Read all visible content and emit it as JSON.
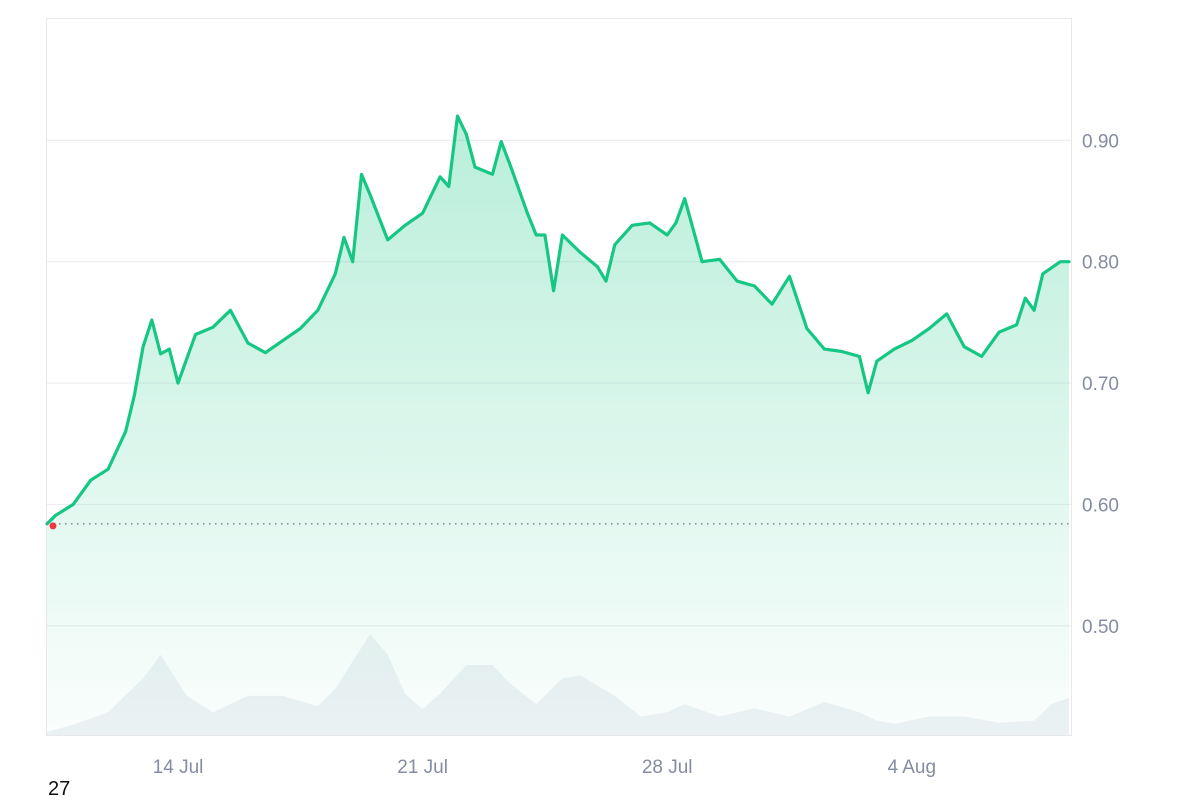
{
  "chart_data": {
    "type": "area",
    "y_ticks": [
      "0.90",
      "0.80",
      "0.70",
      "0.60",
      "0.50"
    ],
    "ylim": [
      0.41,
      1.0
    ],
    "x_ticks": [
      {
        "label": "14 Jul",
        "date": "2024-07-14"
      },
      {
        "label": "21 Jul",
        "date": "2024-07-21"
      },
      {
        "label": "28 Jul",
        "date": "2024-07-28"
      },
      {
        "label": "4 Aug",
        "date": "2024-08-04"
      }
    ],
    "xlim": [
      "2024-07-10T06:00",
      "2024-08-08T12:00"
    ],
    "baseline": 0.584,
    "series": [
      {
        "color": "#16c784",
        "points": [
          [
            "2024-07-10T06:00",
            0.584
          ],
          [
            "2024-07-10T12:00",
            0.591
          ],
          [
            "2024-07-11T00:00",
            0.6
          ],
          [
            "2024-07-11T12:00",
            0.62
          ],
          [
            "2024-07-12T00:00",
            0.629
          ],
          [
            "2024-07-12T12:00",
            0.66
          ],
          [
            "2024-07-12T18:00",
            0.69
          ],
          [
            "2024-07-13T00:00",
            0.73
          ],
          [
            "2024-07-13T06:00",
            0.752
          ],
          [
            "2024-07-13T12:00",
            0.724
          ],
          [
            "2024-07-13T18:00",
            0.728
          ],
          [
            "2024-07-14T00:00",
            0.7
          ],
          [
            "2024-07-14T12:00",
            0.74
          ],
          [
            "2024-07-15T00:00",
            0.746
          ],
          [
            "2024-07-15T12:00",
            0.76
          ],
          [
            "2024-07-16T00:00",
            0.733
          ],
          [
            "2024-07-16T12:00",
            0.725
          ],
          [
            "2024-07-17T00:00",
            0.735
          ],
          [
            "2024-07-17T12:00",
            0.745
          ],
          [
            "2024-07-18T00:00",
            0.76
          ],
          [
            "2024-07-18T12:00",
            0.79
          ],
          [
            "2024-07-18T18:00",
            0.82
          ],
          [
            "2024-07-19T00:00",
            0.8
          ],
          [
            "2024-07-19T06:00",
            0.872
          ],
          [
            "2024-07-19T12:00",
            0.855
          ],
          [
            "2024-07-20T00:00",
            0.818
          ],
          [
            "2024-07-20T12:00",
            0.83
          ],
          [
            "2024-07-21T00:00",
            0.84
          ],
          [
            "2024-07-21T12:00",
            0.87
          ],
          [
            "2024-07-21T18:00",
            0.862
          ],
          [
            "2024-07-22T00:00",
            0.92
          ],
          [
            "2024-07-22T06:00",
            0.905
          ],
          [
            "2024-07-22T12:00",
            0.878
          ],
          [
            "2024-07-23T00:00",
            0.872
          ],
          [
            "2024-07-23T06:00",
            0.899
          ],
          [
            "2024-07-23T12:00",
            0.88
          ],
          [
            "2024-07-24T00:00",
            0.84
          ],
          [
            "2024-07-24T06:00",
            0.822
          ],
          [
            "2024-07-24T12:00",
            0.822
          ],
          [
            "2024-07-24T18:00",
            0.776
          ],
          [
            "2024-07-25T00:00",
            0.822
          ],
          [
            "2024-07-25T12:00",
            0.808
          ],
          [
            "2024-07-26T00:00",
            0.796
          ],
          [
            "2024-07-26T06:00",
            0.784
          ],
          [
            "2024-07-26T12:00",
            0.814
          ],
          [
            "2024-07-27T00:00",
            0.83
          ],
          [
            "2024-07-27T12:00",
            0.832
          ],
          [
            "2024-07-28T00:00",
            0.822
          ],
          [
            "2024-07-28T06:00",
            0.832
          ],
          [
            "2024-07-28T12:00",
            0.852
          ],
          [
            "2024-07-29T00:00",
            0.8
          ],
          [
            "2024-07-29T12:00",
            0.802
          ],
          [
            "2024-07-30T00:00",
            0.784
          ],
          [
            "2024-07-30T12:00",
            0.78
          ],
          [
            "2024-07-31T00:00",
            0.765
          ],
          [
            "2024-07-31T12:00",
            0.788
          ],
          [
            "2024-08-01T00:00",
            0.745
          ],
          [
            "2024-08-01T12:00",
            0.728
          ],
          [
            "2024-08-02T00:00",
            0.726
          ],
          [
            "2024-08-02T12:00",
            0.722
          ],
          [
            "2024-08-02T18:00",
            0.692
          ],
          [
            "2024-08-03T00:00",
            0.718
          ],
          [
            "2024-08-03T12:00",
            0.728
          ],
          [
            "2024-08-04T00:00",
            0.735
          ],
          [
            "2024-08-04T12:00",
            0.745
          ],
          [
            "2024-08-05T00:00",
            0.757
          ],
          [
            "2024-08-05T12:00",
            0.73
          ],
          [
            "2024-08-06T00:00",
            0.722
          ],
          [
            "2024-08-06T12:00",
            0.742
          ],
          [
            "2024-08-07T00:00",
            0.748
          ],
          [
            "2024-08-07T06:00",
            0.77
          ],
          [
            "2024-08-07T12:00",
            0.76
          ],
          [
            "2024-08-07T18:00",
            0.79
          ],
          [
            "2024-08-08T06:00",
            0.8
          ],
          [
            "2024-08-08T12:00",
            0.8
          ]
        ]
      }
    ],
    "volume": {
      "color": "#eff2f5",
      "points": [
        [
          "2024-07-10T06:00",
          0.03
        ],
        [
          "2024-07-11T00:00",
          0.1
        ],
        [
          "2024-07-12T00:00",
          0.22
        ],
        [
          "2024-07-13T00:00",
          0.55
        ],
        [
          "2024-07-13T12:00",
          0.78
        ],
        [
          "2024-07-14T06:00",
          0.38
        ],
        [
          "2024-07-15T00:00",
          0.22
        ],
        [
          "2024-07-16T00:00",
          0.38
        ],
        [
          "2024-07-17T00:00",
          0.38
        ],
        [
          "2024-07-18T00:00",
          0.28
        ],
        [
          "2024-07-18T12:00",
          0.45
        ],
        [
          "2024-07-19T06:00",
          0.85
        ],
        [
          "2024-07-19T12:00",
          0.98
        ],
        [
          "2024-07-20T00:00",
          0.78
        ],
        [
          "2024-07-20T12:00",
          0.4
        ],
        [
          "2024-07-21T00:00",
          0.25
        ],
        [
          "2024-07-21T12:00",
          0.4
        ],
        [
          "2024-07-22T06:00",
          0.68
        ],
        [
          "2024-07-23T00:00",
          0.68
        ],
        [
          "2024-07-23T12:00",
          0.5
        ],
        [
          "2024-07-24T06:00",
          0.3
        ],
        [
          "2024-07-25T00:00",
          0.55
        ],
        [
          "2024-07-25T12:00",
          0.58
        ],
        [
          "2024-07-26T12:00",
          0.38
        ],
        [
          "2024-07-27T06:00",
          0.18
        ],
        [
          "2024-07-28T00:00",
          0.22
        ],
        [
          "2024-07-28T12:00",
          0.3
        ],
        [
          "2024-07-29T12:00",
          0.18
        ],
        [
          "2024-07-30T12:00",
          0.26
        ],
        [
          "2024-07-31T12:00",
          0.18
        ],
        [
          "2024-08-01T12:00",
          0.32
        ],
        [
          "2024-08-02T12:00",
          0.22
        ],
        [
          "2024-08-03T00:00",
          0.14
        ],
        [
          "2024-08-03T12:00",
          0.11
        ],
        [
          "2024-08-04T12:00",
          0.18
        ],
        [
          "2024-08-05T12:00",
          0.18
        ],
        [
          "2024-08-06T12:00",
          0.12
        ],
        [
          "2024-08-07T12:00",
          0.14
        ],
        [
          "2024-08-08T00:00",
          0.3
        ],
        [
          "2024-08-08T12:00",
          0.36
        ]
      ]
    }
  },
  "footnote": "27"
}
